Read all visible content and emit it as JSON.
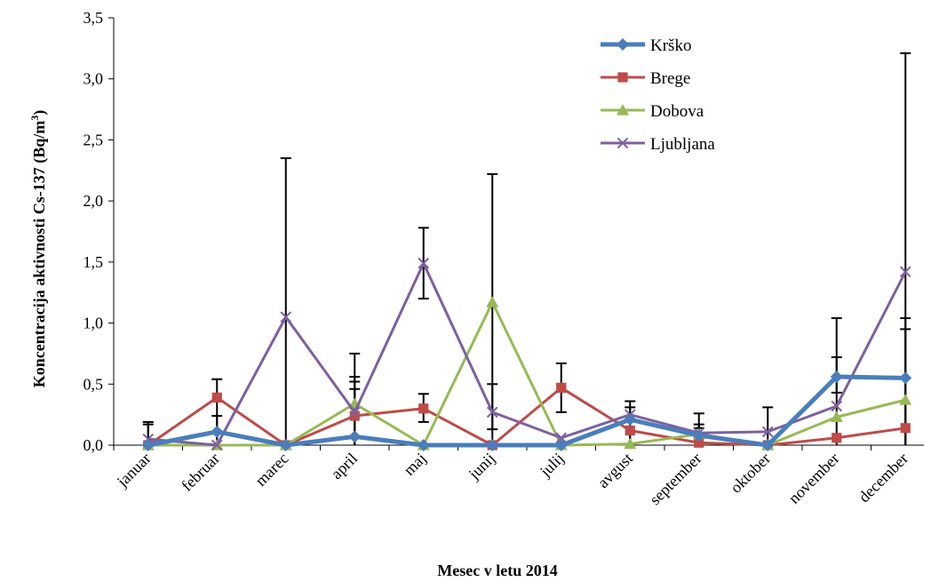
{
  "chart_data": {
    "type": "line",
    "title": "",
    "xlabel": "Mesec v letu 2014",
    "ylabel_main": "Koncentracija aktivnosti Cs-137 (Bq/m",
    "ylabel_sup": "3",
    "ylabel_close": ")",
    "ylim": [
      0,
      3.5
    ],
    "yticks": [
      0,
      0.5,
      1.0,
      1.5,
      2.0,
      2.5,
      3.0,
      3.5
    ],
    "ytick_labels": [
      "0,0",
      "0,5",
      "1,0",
      "1,5",
      "2,0",
      "2,5",
      "3,0",
      "3,5"
    ],
    "grid": false,
    "legend_position": "top-right",
    "categories": [
      "januar",
      "februar",
      "marec",
      "april",
      "maj",
      "junij",
      "julij",
      "avgust",
      "september",
      "oktober",
      "november",
      "december"
    ],
    "series": [
      {
        "name": "Krško",
        "color": "#4a7ebb",
        "marker": "diamond",
        "line_width": 5,
        "values": [
          0.0,
          0.11,
          0.0,
          0.07,
          0.0,
          0.0,
          0.0,
          0.21,
          0.08,
          0.0,
          0.56,
          0.55
        ]
      },
      {
        "name": "Brege",
        "color": "#be4b48",
        "marker": "square",
        "line_width": 3,
        "values": [
          0.0,
          0.39,
          0.0,
          0.24,
          0.3,
          0.0,
          0.47,
          0.12,
          0.02,
          0.0,
          0.06,
          0.14
        ]
      },
      {
        "name": "Dobova",
        "color": "#98b954",
        "marker": "triangle",
        "line_width": 3,
        "values": [
          0.0,
          0.0,
          0.0,
          0.34,
          0.0,
          1.17,
          0.0,
          0.01,
          0.09,
          0.0,
          0.23,
          0.37
        ]
      },
      {
        "name": "Ljubljana",
        "color": "#7d60a0",
        "marker": "x",
        "line_width": 3,
        "values": [
          0.05,
          0.0,
          1.05,
          0.27,
          1.49,
          0.27,
          0.06,
          0.25,
          0.1,
          0.11,
          0.32,
          1.42
        ]
      }
    ],
    "error_bars": [
      {
        "category": "januar",
        "upper": 0.19
      },
      {
        "category": "januar",
        "upper": 0.17
      },
      {
        "category": "februar",
        "upper": 0.54
      },
      {
        "category": "februar",
        "lower": 0.24
      },
      {
        "category": "marec",
        "upper": 2.35
      },
      {
        "category": "april",
        "upper": 0.75
      },
      {
        "category": "april",
        "upper": 0.56
      },
      {
        "category": "april",
        "upper": 0.52
      },
      {
        "category": "april",
        "upper": 0.46
      },
      {
        "category": "maj",
        "upper": 1.78,
        "lower": 1.2
      },
      {
        "category": "maj",
        "upper": 0.42,
        "lower": 0.19
      },
      {
        "category": "junij",
        "upper": 2.22,
        "lower": 0.13
      },
      {
        "category": "junij",
        "upper": 0.5
      },
      {
        "category": "julij",
        "upper": 0.67,
        "lower": 0.27
      },
      {
        "category": "avgust",
        "upper": 0.36
      },
      {
        "category": "avgust",
        "upper": 0.31
      },
      {
        "category": "september",
        "upper": 0.26
      },
      {
        "category": "september",
        "upper": 0.17
      },
      {
        "category": "september",
        "upper": 0.14
      },
      {
        "category": "oktober",
        "upper": 0.31
      },
      {
        "category": "november",
        "upper": 1.04,
        "lower": 0.43
      },
      {
        "category": "november",
        "upper": 0.72
      },
      {
        "category": "december",
        "upper": 3.21
      },
      {
        "category": "december",
        "upper": 1.04
      },
      {
        "category": "december",
        "upper": 0.95
      }
    ]
  }
}
